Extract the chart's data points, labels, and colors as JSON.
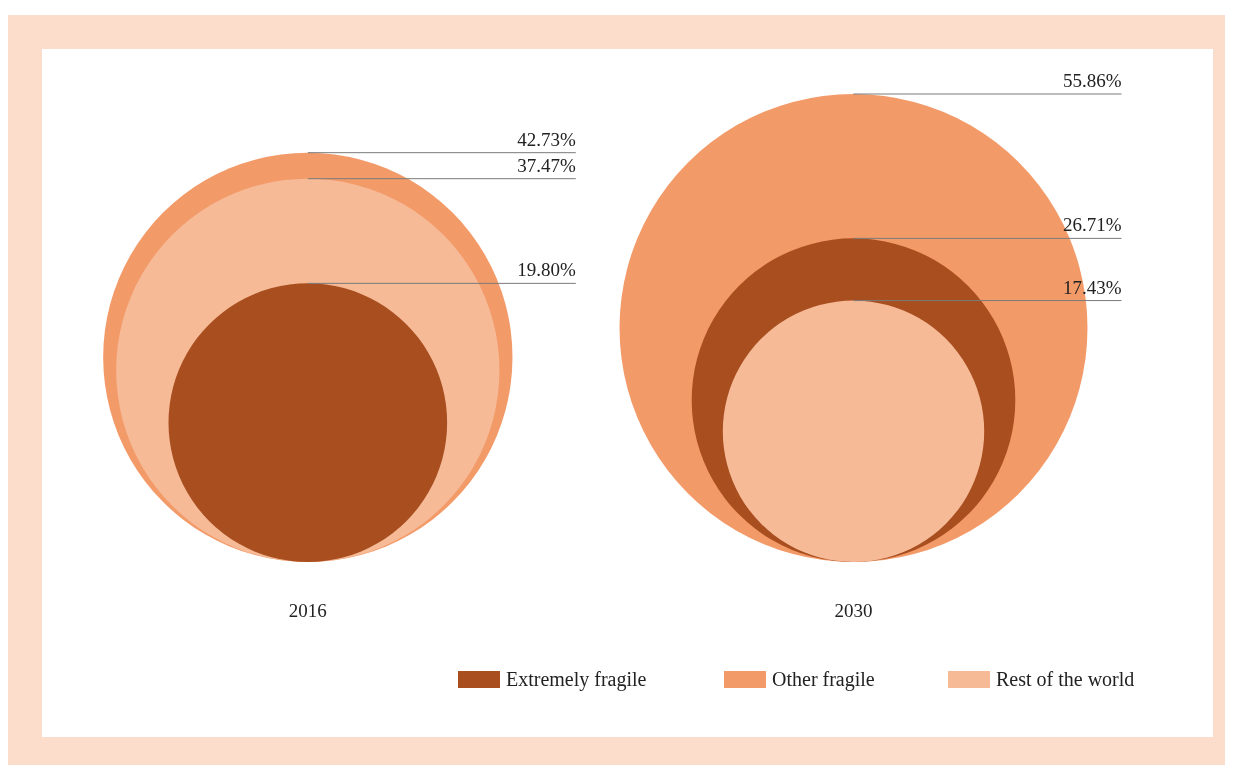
{
  "chart_data": {
    "type": "other",
    "categories": [
      "2016",
      "2030"
    ],
    "series": [
      {
        "name": "Extremely fragile",
        "color": "#a84e1f",
        "values": [
          19.8,
          26.71
        ],
        "value_labels": [
          "19.80%",
          "26.71%"
        ]
      },
      {
        "name": "Other fragile",
        "color": "#f39a69",
        "values": [
          42.73,
          55.86
        ],
        "value_labels": [
          "42.73%",
          "55.86%"
        ]
      },
      {
        "name": "Rest of the world",
        "color": "#f6ba97",
        "values": [
          37.47,
          17.43
        ],
        "value_labels": [
          "37.47%",
          "17.43%"
        ]
      }
    ],
    "legend": "bottom right"
  }
}
